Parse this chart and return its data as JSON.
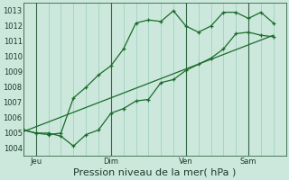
{
  "bg_color": "#cce8dc",
  "grid_color": "#99ccbb",
  "line_color": "#1a6b2a",
  "xlabel": "Pression niveau de la mer( hPa )",
  "ylim": [
    1003.5,
    1013.5
  ],
  "yticks": [
    1004,
    1005,
    1006,
    1007,
    1008,
    1009,
    1010,
    1011,
    1012,
    1013
  ],
  "xtick_labels": [
    "Jeu",
    "Dim",
    "Ven",
    "Sam"
  ],
  "xtick_positions": [
    6,
    42,
    78,
    108
  ],
  "xlim": [
    0,
    126
  ],
  "vlines": [
    6,
    42,
    78,
    108
  ],
  "xminor_positions": [
    0,
    6,
    12,
    18,
    24,
    30,
    36,
    42,
    48,
    54,
    60,
    66,
    72,
    78,
    84,
    90,
    96,
    102,
    108,
    114,
    120,
    126
  ],
  "line1_x": [
    0,
    6,
    12,
    18,
    24,
    30,
    36,
    42,
    48,
    54,
    60,
    66,
    72,
    78,
    84,
    90,
    96,
    102,
    108,
    114,
    120
  ],
  "line1_y": [
    1005.2,
    1005.0,
    1005.0,
    1004.8,
    1004.15,
    1004.9,
    1005.2,
    1006.3,
    1006.6,
    1007.1,
    1007.2,
    1008.3,
    1008.5,
    1009.1,
    1009.5,
    1009.9,
    1010.5,
    1011.5,
    1011.6,
    1011.4,
    1011.3
  ],
  "line2_x": [
    0,
    6,
    12,
    18,
    24,
    30,
    36,
    42,
    48,
    54,
    60,
    66,
    72,
    78,
    84,
    90,
    96,
    102,
    108,
    114,
    120
  ],
  "line2_y": [
    1005.2,
    1005.0,
    1004.9,
    1005.0,
    1007.3,
    1008.0,
    1008.8,
    1009.4,
    1010.5,
    1012.2,
    1012.4,
    1012.3,
    1013.0,
    1012.0,
    1011.6,
    1012.0,
    1012.9,
    1012.9,
    1012.5,
    1012.9,
    1012.2
  ],
  "line3_x": [
    0,
    120
  ],
  "line3_y": [
    1005.1,
    1011.4
  ],
  "title_fontsize": 7,
  "tick_fontsize": 6,
  "xlabel_fontsize": 8
}
